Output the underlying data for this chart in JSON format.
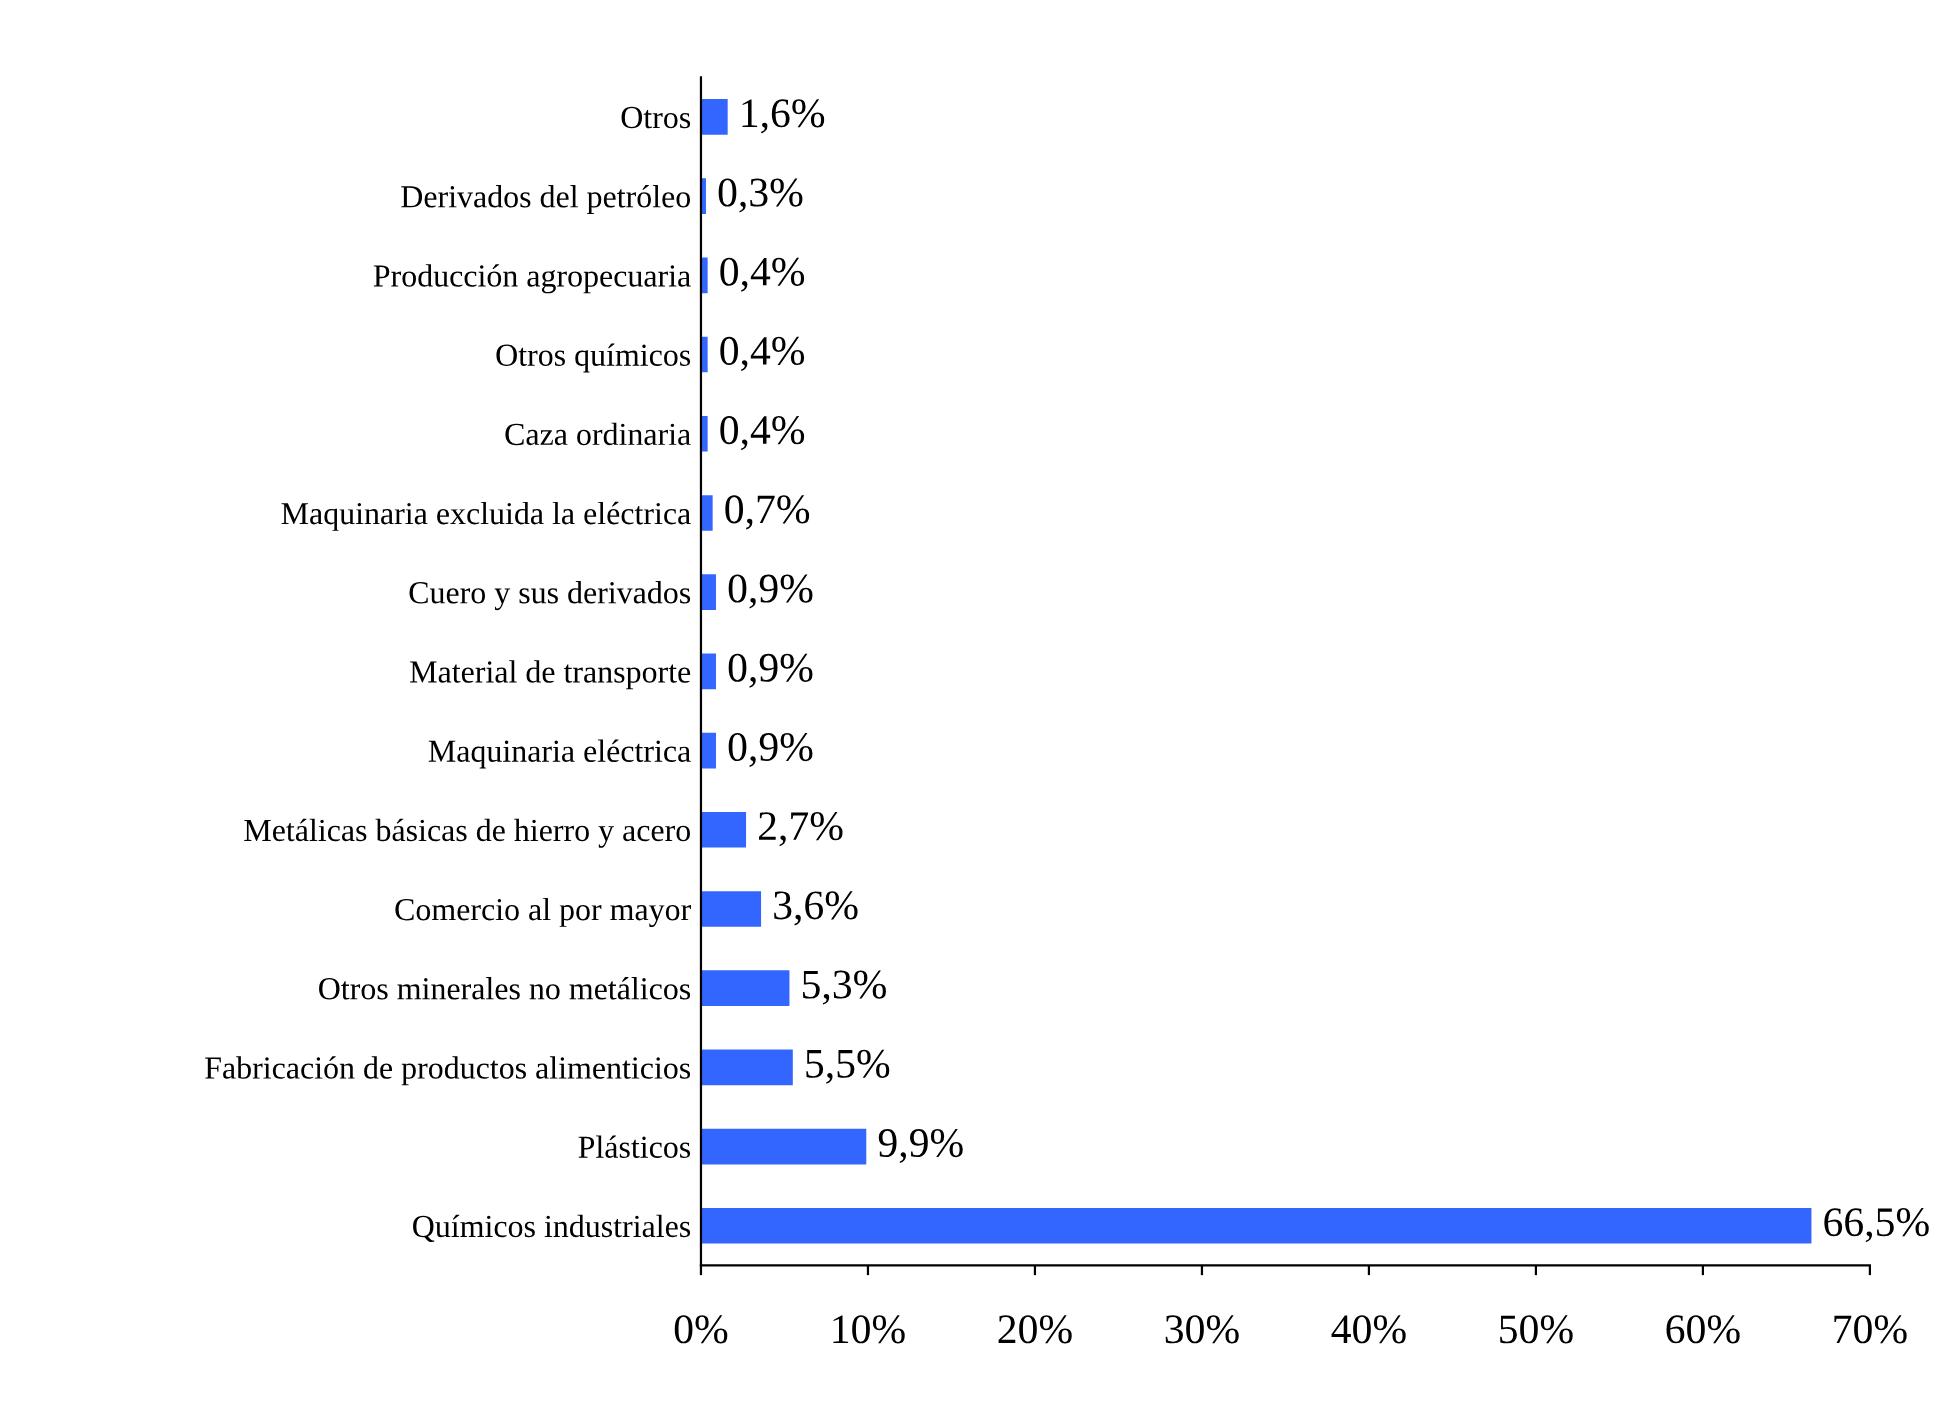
{
  "chart_data": {
    "type": "bar",
    "orientation": "horizontal",
    "categories": [
      "Otros",
      "Derivados del petróleo",
      "Producción agropecuaria",
      "Otros químicos",
      "Caza ordinaria",
      "Maquinaria excluida la eléctrica",
      "Cuero y sus derivados",
      "Material de transporte",
      "Maquinaria eléctrica",
      "Metálicas básicas de hierro y acero",
      "Comercio al por mayor",
      "Otros minerales no metálicos",
      "Fabricación de productos alimenticios",
      "Plásticos",
      "Químicos industriales"
    ],
    "values": [
      1.6,
      0.3,
      0.4,
      0.4,
      0.4,
      0.7,
      0.9,
      0.9,
      0.9,
      2.7,
      3.6,
      5.3,
      5.5,
      9.9,
      66.5
    ],
    "value_labels": [
      "1,6%",
      "0,3%",
      "0,4%",
      "0,4%",
      "0,4%",
      "0,7%",
      "0,9%",
      "0,9%",
      "0,9%",
      "2,7%",
      "3,6%",
      "5,3%",
      "5,5%",
      "9,9%",
      "66,5%"
    ],
    "color": "#3366ff",
    "xlim": [
      0,
      70
    ],
    "xticks": [
      {
        "value": 0,
        "label": "0%"
      },
      {
        "value": 10,
        "label": "10%"
      },
      {
        "value": 20,
        "label": "20%"
      },
      {
        "value": 30,
        "label": "30%"
      },
      {
        "value": 40,
        "label": "40%"
      },
      {
        "value": 50,
        "label": "50%"
      },
      {
        "value": 60,
        "label": "60%"
      },
      {
        "value": 70,
        "label": "70%"
      }
    ],
    "grid": false,
    "legend": false
  }
}
